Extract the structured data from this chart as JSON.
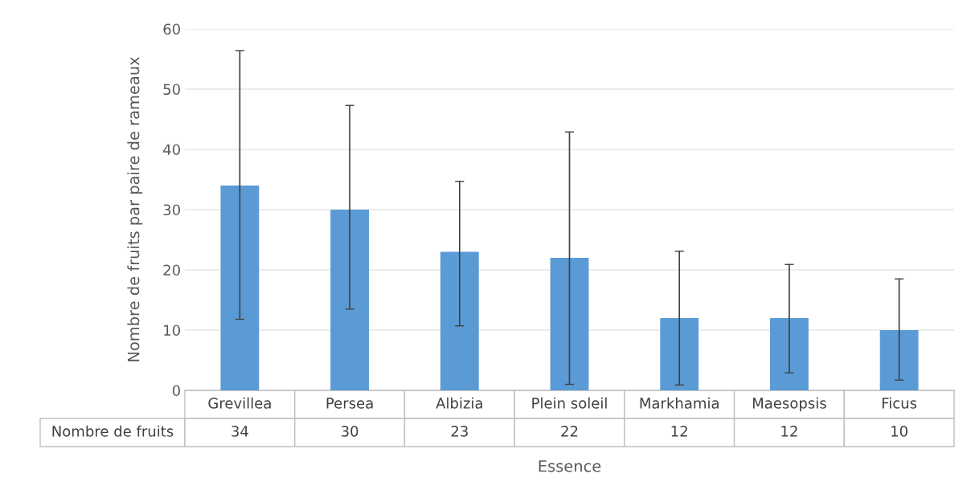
{
  "chart_data": {
    "type": "bar",
    "categories": [
      "Grevillea",
      "Persea",
      "Albizia",
      "Plein soleil",
      "Markhamia",
      "Maesopsis",
      "Ficus"
    ],
    "values": [
      34,
      30,
      23,
      22,
      12,
      12,
      10
    ],
    "errors": [
      [
        11.8,
        56.4
      ],
      [
        13.5,
        47.3
      ],
      [
        10.7,
        34.7
      ],
      [
        1,
        42.9
      ],
      [
        0.9,
        23.1
      ],
      [
        2.9,
        20.9
      ],
      [
        1.7,
        18.5
      ]
    ],
    "color": "#5b9bd5",
    "data_labels": true,
    "annotations": [
      "Nombre de fruits"
    ],
    "xlabel": "Essence",
    "ylabel": "Nombre de fruits par paire de rameaux",
    "ylim": [
      0,
      60
    ],
    "yticks": [
      0,
      10,
      20,
      30,
      40,
      50,
      60
    ],
    "grid": "y"
  }
}
